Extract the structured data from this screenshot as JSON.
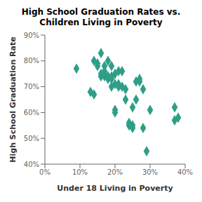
{
  "chart_data": {
    "type": "scatter",
    "title": "High School Graduation Rates vs.\nChildren Living in Poverty",
    "xlabel": "Under 18 Living in Poverty",
    "ylabel": "High School Graduation Rate",
    "color": "#2E9E87",
    "marker": "diamond",
    "grid": false,
    "xlim": [
      0.0,
      0.4
    ],
    "ylim": [
      0.4,
      0.9
    ],
    "xticks": [
      {
        "value": 0.0,
        "label": "0%"
      },
      {
        "value": 0.1,
        "label": "10%"
      },
      {
        "value": 0.2,
        "label": "20%"
      },
      {
        "value": 0.3,
        "label": "30%"
      },
      {
        "value": 0.4,
        "label": "40%"
      }
    ],
    "yticks": [
      {
        "value": 0.4,
        "label": "40%"
      },
      {
        "value": 0.5,
        "label": "50%"
      },
      {
        "value": 0.6,
        "label": "60%"
      },
      {
        "value": 0.7,
        "label": "70%"
      },
      {
        "value": 0.8,
        "label": "80%"
      },
      {
        "value": 0.9,
        "label": "90%"
      }
    ],
    "x": [
      0.09,
      0.13,
      0.14,
      0.14,
      0.15,
      0.15,
      0.16,
      0.16,
      0.16,
      0.17,
      0.17,
      0.17,
      0.17,
      0.18,
      0.18,
      0.18,
      0.18,
      0.19,
      0.19,
      0.19,
      0.19,
      0.2,
      0.2,
      0.2,
      0.2,
      0.21,
      0.21,
      0.21,
      0.22,
      0.22,
      0.23,
      0.23,
      0.24,
      0.24,
      0.25,
      0.25,
      0.25,
      0.26,
      0.26,
      0.27,
      0.27,
      0.28,
      0.28,
      0.29,
      0.3,
      0.37,
      0.37,
      0.38
    ],
    "values": [
      0.77,
      0.68,
      0.67,
      0.8,
      0.78,
      0.79,
      0.74,
      0.75,
      0.83,
      0.74,
      0.75,
      0.76,
      0.78,
      0.73,
      0.74,
      0.74,
      0.8,
      0.7,
      0.73,
      0.74,
      0.78,
      0.6,
      0.61,
      0.71,
      0.75,
      0.7,
      0.71,
      0.76,
      0.7,
      0.76,
      0.65,
      0.69,
      0.55,
      0.56,
      0.54,
      0.55,
      0.62,
      0.65,
      0.72,
      0.72,
      0.73,
      0.54,
      0.69,
      0.45,
      0.61,
      0.57,
      0.62,
      0.58
    ]
  }
}
